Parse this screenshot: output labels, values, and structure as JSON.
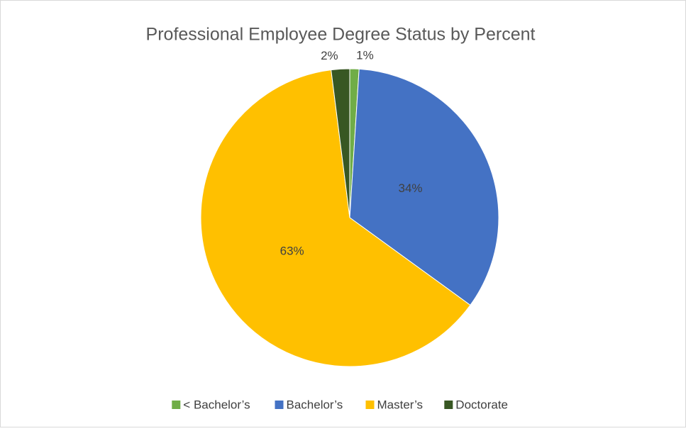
{
  "chart_data": {
    "type": "pie",
    "title": "Professional Employee Degree Status by Percent",
    "categories": [
      "< Bachelor’s",
      "Bachelor’s",
      "Master’s",
      "Doctorate"
    ],
    "values": [
      1,
      34,
      63,
      2
    ],
    "value_labels": [
      "1%",
      "34%",
      "63%",
      "2%"
    ],
    "colors": [
      "#70ad47",
      "#4472c4",
      "#ffc000",
      "#385723"
    ],
    "legend": "bottom"
  }
}
